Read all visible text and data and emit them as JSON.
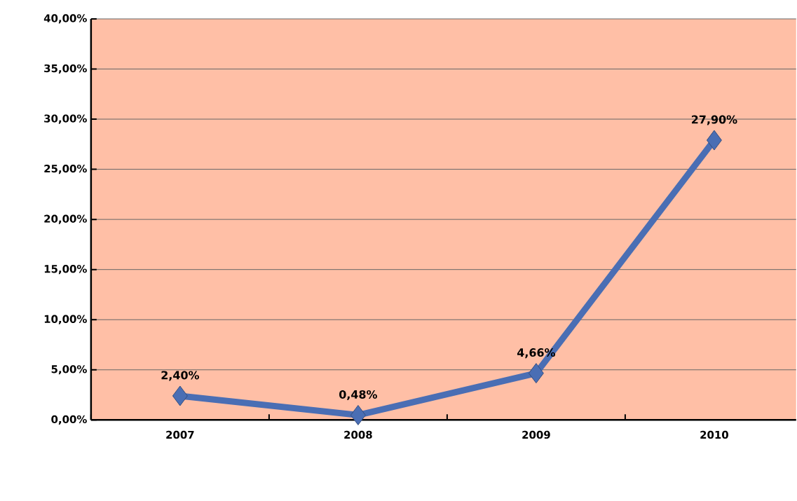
{
  "chart_data": {
    "type": "line",
    "categories": [
      "2007",
      "2008",
      "2009",
      "2010"
    ],
    "series": [
      {
        "color": "#4a6eb4",
        "values": [
          2.4,
          0.48,
          4.66,
          27.9
        ],
        "value_labels": [
          "2,40%",
          "0,48%",
          "4,66%",
          "27,90%"
        ]
      }
    ],
    "ylim": [
      0,
      40
    ],
    "yticks": [
      {
        "value": 0,
        "label": "0,00%"
      },
      {
        "value": 5,
        "label": "5,00%"
      },
      {
        "value": 10,
        "label": "10,00%"
      },
      {
        "value": 15,
        "label": "15,00%"
      },
      {
        "value": 20,
        "label": "20,00%"
      },
      {
        "value": 25,
        "label": "25,00%"
      },
      {
        "value": 30,
        "label": "30,00%"
      },
      {
        "value": 35,
        "label": "35,00%"
      },
      {
        "value": 40,
        "label": "40,00%"
      }
    ],
    "grid": "y",
    "marker": "diamond",
    "line_style": "solid"
  }
}
